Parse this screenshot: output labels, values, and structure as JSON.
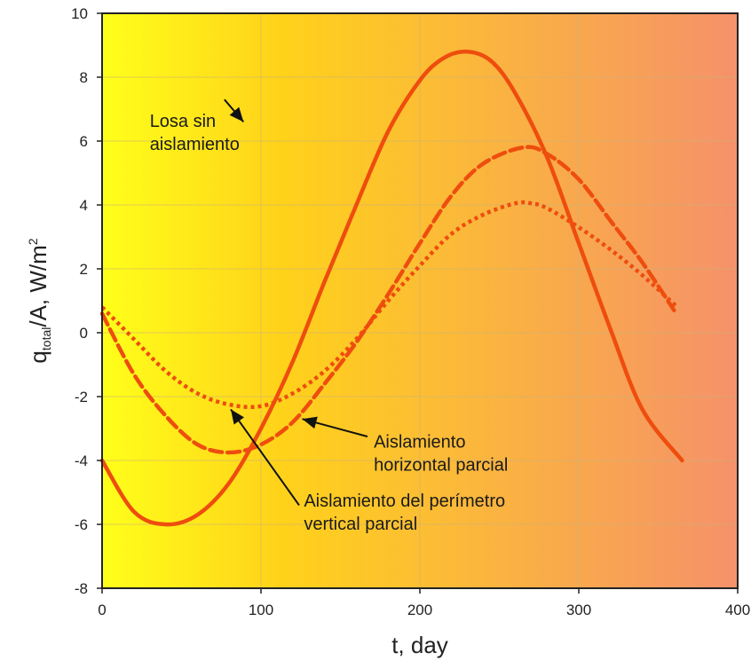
{
  "chart_data": {
    "type": "line",
    "xlabel": "t, day",
    "ylabel": {
      "main": "q",
      "sub": "total",
      "rest": "/A, W/m",
      "sup": "2"
    },
    "xlim": [
      0,
      400
    ],
    "ylim": [
      -8,
      10
    ],
    "xticks": [
      0,
      100,
      200,
      300,
      400
    ],
    "yticks": [
      -8,
      -6,
      -4,
      -2,
      0,
      2,
      4,
      6,
      8,
      10
    ],
    "grid": true,
    "background": {
      "left_color": "#ffff1a",
      "mid_color": "#ffd21a",
      "right_color": "#f5916a"
    },
    "series": [
      {
        "name": "Losa sin aislamiento",
        "style": "solid",
        "color": "#ee4d0e",
        "x": [
          0,
          20,
          40,
          60,
          80,
          100,
          120,
          140,
          160,
          180,
          200,
          215,
          230,
          245,
          260,
          280,
          300,
          320,
          340,
          365
        ],
        "y": [
          -4.0,
          -5.6,
          -6.0,
          -5.7,
          -4.7,
          -3.0,
          -0.9,
          1.6,
          4.0,
          6.3,
          7.9,
          8.6,
          8.8,
          8.5,
          7.5,
          5.5,
          2.8,
          0.1,
          -2.4,
          -4.0
        ]
      },
      {
        "name": "Aislamiento horizontal parcial",
        "style": "dashed",
        "color": "#ee4d0e",
        "x": [
          0,
          20,
          40,
          60,
          80,
          100,
          120,
          140,
          160,
          180,
          200,
          220,
          240,
          265,
          280,
          300,
          320,
          340,
          360
        ],
        "y": [
          0.6,
          -1.3,
          -2.6,
          -3.5,
          -3.75,
          -3.5,
          -2.8,
          -1.6,
          -0.3,
          1.2,
          2.8,
          4.3,
          5.3,
          5.8,
          5.6,
          4.8,
          3.5,
          2.2,
          0.7
        ]
      },
      {
        "name": "Aislamiento del perímetro vertical parcial",
        "style": "dotted",
        "color": "#ee4d0e",
        "x": [
          0,
          20,
          40,
          60,
          80,
          100,
          120,
          140,
          160,
          180,
          200,
          220,
          240,
          260,
          270,
          280,
          300,
          320,
          340,
          362
        ],
        "y": [
          0.8,
          -0.2,
          -1.2,
          -1.9,
          -2.25,
          -2.3,
          -1.9,
          -1.2,
          -0.2,
          1.0,
          2.1,
          3.1,
          3.7,
          4.05,
          4.05,
          3.9,
          3.3,
          2.6,
          1.8,
          0.8
        ]
      }
    ],
    "annotations": [
      {
        "lines": [
          "Losa sin",
          "aislamiento"
        ],
        "text_at": [
          30,
          6.45
        ],
        "arrow_from": [
          77,
          7.3
        ],
        "arrow_to": [
          89,
          6.6
        ]
      },
      {
        "lines": [
          "Aislamiento",
          "horizontal parcial"
        ],
        "text_at": [
          171,
          -3.6
        ],
        "arrow_from": [
          167,
          -3.25
        ],
        "arrow_to": [
          126,
          -2.7
        ]
      },
      {
        "lines": [
          "Aislamiento del perímetro",
          "vertical parcial"
        ],
        "text_at": [
          127,
          -5.45
        ],
        "arrow_from": [
          124,
          -5.4
        ],
        "arrow_to": [
          81,
          -2.4
        ]
      }
    ]
  }
}
